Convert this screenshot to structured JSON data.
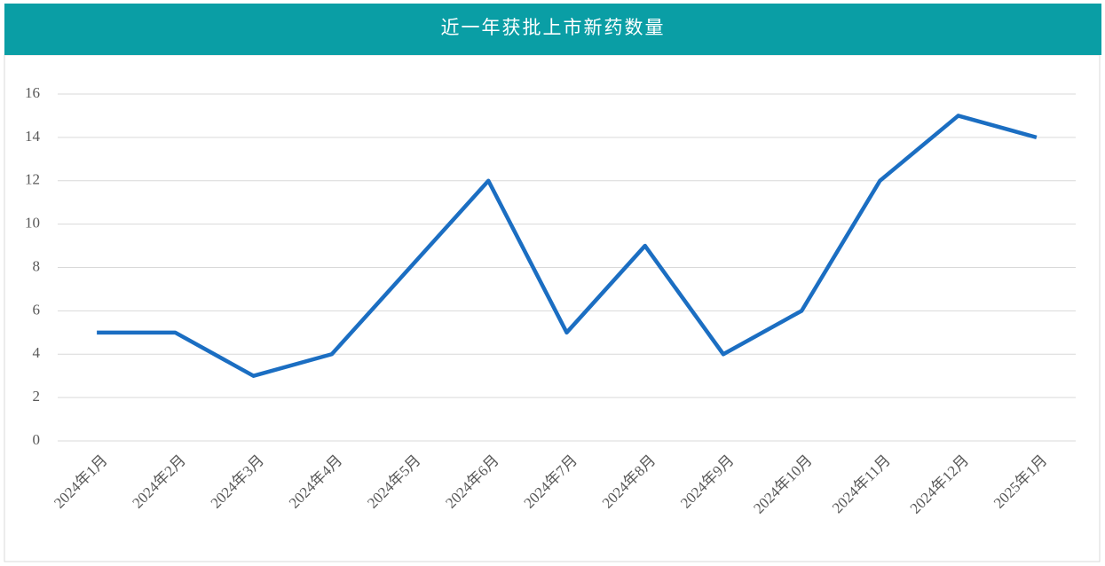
{
  "chart_data": {
    "type": "line",
    "title": "近一年获批上市新药数量",
    "categories": [
      "2024年1月",
      "2024年2月",
      "2024年3月",
      "2024年4月",
      "2024年5月",
      "2024年6月",
      "2024年7月",
      "2024年8月",
      "2024年9月",
      "2024年10月",
      "2024年11月",
      "2024年12月",
      "2025年1月"
    ],
    "values": [
      5,
      5,
      3,
      4,
      8,
      12,
      5,
      9,
      4,
      6,
      12,
      15,
      14
    ],
    "color": "#1b6ec2",
    "ylim": [
      0,
      16
    ],
    "yticks": [
      0,
      2,
      4,
      6,
      8,
      10,
      12,
      14,
      16
    ],
    "grid": true
  }
}
